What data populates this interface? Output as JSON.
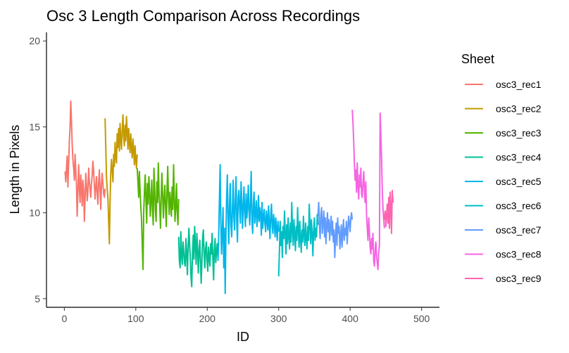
{
  "chart_data": {
    "type": "line",
    "title": "Osc 3 Length Comparison Across Recordings",
    "xlabel": "ID",
    "ylabel": "Length in Pixels",
    "xlim": [
      -25,
      525
    ],
    "ylim": [
      4.5,
      20.5
    ],
    "xticks": [
      0,
      100,
      200,
      300,
      400,
      500
    ],
    "yticks": [
      5,
      10,
      15,
      20
    ],
    "grid": false,
    "legend": {
      "title": "Sheet",
      "placement": "right"
    },
    "series": [
      {
        "name": "osc3_rec1",
        "color": "#F8766D",
        "x_start": 1,
        "x_end": 57,
        "values": [
          12.4,
          11.8,
          12.6,
          13.3,
          11.5,
          12.9,
          14.2,
          15.0,
          16.5,
          15.3,
          14.0,
          13.1,
          12.6,
          11.9,
          13.4,
          12.5,
          11.6,
          9.8,
          11.2,
          12.8,
          11.4,
          10.6,
          12.2,
          11.5,
          10.4,
          11.9,
          11.3,
          9.5,
          10.8,
          12.3,
          11.6,
          10.7,
          11.2,
          12.6,
          11.8,
          11.4,
          10.9,
          11.7,
          12.2,
          13.0,
          12.4,
          11.6,
          10.8,
          11.5,
          12.1,
          11.2,
          10.5,
          11.8,
          12.5,
          11.4,
          10.2,
          11.6,
          12.3,
          11.7,
          11.1,
          10.9,
          11.4
        ]
      },
      {
        "name": "osc3_rec2",
        "color": "#C49A00",
        "x_start": 57,
        "x_end": 102,
        "values": [
          15.5,
          13.8,
          12.1,
          11.4,
          10.8,
          9.5,
          8.2,
          10.6,
          12.3,
          13.1,
          12.5,
          11.8,
          13.4,
          12.7,
          14.1,
          13.3,
          12.9,
          14.6,
          13.8,
          14.9,
          13.6,
          15.2,
          14.3,
          13.7,
          14.8,
          15.7,
          14.4,
          13.9,
          15.1,
          14.2,
          15.6,
          14.8,
          13.7,
          14.9,
          14.1,
          13.5,
          14.6,
          13.8,
          13.2,
          14.3,
          13.6,
          12.8,
          13.9,
          13.1,
          12.6,
          13.4
        ]
      },
      {
        "name": "osc3_rec3",
        "color": "#53B400",
        "x_start": 102,
        "x_end": 160,
        "values": [
          12.6,
          11.8,
          10.9,
          12.4,
          11.2,
          10.3,
          9.6,
          8.0,
          6.7,
          10.1,
          11.3,
          12.2,
          10.8,
          9.4,
          11.7,
          10.5,
          12.1,
          11.3,
          9.8,
          10.7,
          11.9,
          10.2,
          9.3,
          12.6,
          11.4,
          10.1,
          9.5,
          11.8,
          10.6,
          12.9,
          11.2,
          10.4,
          9.1,
          10.9,
          12.3,
          11.0,
          9.7,
          10.8,
          11.6,
          10.3,
          9.2,
          11.4,
          12.7,
          10.9,
          9.9,
          11.2,
          10.6,
          9.8,
          11.5,
          10.2,
          12.8,
          11.0,
          9.5,
          10.4,
          11.7,
          10.1,
          9.3,
          10.8
        ]
      },
      {
        "name": "osc3_rec4",
        "color": "#00C094",
        "x_start": 160,
        "x_end": 215,
        "values": [
          8.6,
          7.2,
          6.8,
          8.9,
          7.5,
          7.0,
          8.3,
          7.8,
          7.1,
          6.9,
          8.5,
          7.7,
          6.4,
          7.9,
          9.1,
          8.2,
          7.4,
          6.2,
          5.7,
          7.6,
          8.7,
          7.3,
          9.2,
          8.1,
          7.0,
          8.8,
          7.9,
          6.5,
          7.7,
          8.4,
          7.1,
          5.9,
          7.3,
          8.6,
          9.0,
          7.5,
          6.8,
          7.9,
          8.3,
          7.2,
          6.6,
          8.0,
          7.4,
          6.9,
          8.2,
          7.6,
          8.8,
          7.3,
          6.1,
          7.8,
          8.5,
          7.1,
          7.7,
          8.2,
          7.4
        ]
      },
      {
        "name": "osc3_rec5",
        "color": "#00B6EB",
        "x_start": 215,
        "x_end": 300,
        "values": [
          7.2,
          8.5,
          10.6,
          12.8,
          9.4,
          7.6,
          8.9,
          10.3,
          6.8,
          9.1,
          5.3,
          8.7,
          10.8,
          12.2,
          9.6,
          8.2,
          10.4,
          11.7,
          9.3,
          8.6,
          10.1,
          11.9,
          9.8,
          9.0,
          10.7,
          12.1,
          9.5,
          8.3,
          10.9,
          11.3,
          10.2,
          9.4,
          11.8,
          10.6,
          9.1,
          10.3,
          11.5,
          10.0,
          9.2,
          11.1,
          9.7,
          10.4,
          11.6,
          10.1,
          9.3,
          10.8,
          12.4,
          9.6,
          8.8,
          10.5,
          11.2,
          9.4,
          10.0,
          10.7,
          9.2,
          9.8,
          11.0,
          9.5,
          10.3,
          9.9,
          8.7,
          10.6,
          9.1,
          9.7,
          10.2,
          9.4,
          8.9,
          10.1,
          9.6,
          9.0,
          10.4,
          9.3,
          8.5,
          9.8,
          10.5,
          9.2,
          8.8,
          9.9,
          9.4,
          8.6,
          9.7,
          9.1,
          8.4,
          9.5,
          8.9
        ]
      },
      {
        "name": "osc3_rec6",
        "color": "#00BFC4",
        "x_start": 300,
        "x_end": 355,
        "values": [
          6.3,
          7.8,
          9.5,
          8.1,
          8.9,
          7.4,
          9.2,
          8.5,
          10.1,
          8.8,
          7.6,
          9.3,
          8.2,
          9.7,
          8.6,
          7.9,
          9.4,
          8.3,
          10.6,
          9.0,
          8.1,
          9.6,
          8.7,
          7.8,
          9.2,
          8.4,
          10.3,
          9.1,
          8.0,
          9.5,
          8.6,
          7.7,
          9.0,
          8.3,
          9.8,
          8.7,
          8.1,
          9.4,
          8.5,
          7.9,
          9.2,
          8.4,
          10.5,
          9.3,
          8.2,
          9.6,
          8.8,
          7.5,
          8.9,
          9.7,
          8.4,
          9.1,
          8.6,
          9.9,
          9.3
        ]
      },
      {
        "name": "osc3_rec7",
        "color": "#619CFF",
        "x_start": 355,
        "x_end": 403,
        "values": [
          9.8,
          10.6,
          9.2,
          8.5,
          9.9,
          10.3,
          8.8,
          9.4,
          10.1,
          8.6,
          9.7,
          8.2,
          9.3,
          10.0,
          8.9,
          9.6,
          8.4,
          9.1,
          9.8,
          8.7,
          9.5,
          8.3,
          9.0,
          7.4,
          8.6,
          9.4,
          8.1,
          9.7,
          8.8,
          9.2,
          7.9,
          8.5,
          9.3,
          8.0,
          8.9,
          9.6,
          8.4,
          9.1,
          8.7,
          9.5,
          8.2,
          9.0,
          9.8,
          9.4,
          8.9,
          9.7,
          10.0,
          9.6
        ]
      },
      {
        "name": "osc3_rec8",
        "color": "#F564E3",
        "x_start": 403,
        "x_end": 448,
        "values": [
          16.0,
          15.3,
          14.1,
          12.8,
          11.9,
          12.5,
          11.2,
          12.9,
          11.6,
          10.8,
          12.2,
          11.5,
          12.6,
          11.1,
          10.9,
          11.7,
          12.4,
          11.3,
          10.6,
          11.8,
          9.9,
          9.1,
          8.4,
          9.7,
          8.9,
          8.0,
          7.6,
          8.5,
          7.9,
          8.8,
          7.2,
          6.9,
          7.8,
          8.3,
          7.5,
          7.1,
          6.7,
          7.7,
          8.1,
          15.8,
          14.6,
          13.2,
          11.4,
          10.2,
          9.6,
          9.1
        ]
      },
      {
        "name": "osc3_rec9",
        "color": "#FF64B0",
        "x_start": 448,
        "x_end": 460,
        "values": [
          9.6,
          10.1,
          9.2,
          9.8,
          10.5,
          9.4,
          10.9,
          9.1,
          11.2,
          10.3,
          8.8,
          11.3,
          10.6
        ]
      }
    ]
  }
}
